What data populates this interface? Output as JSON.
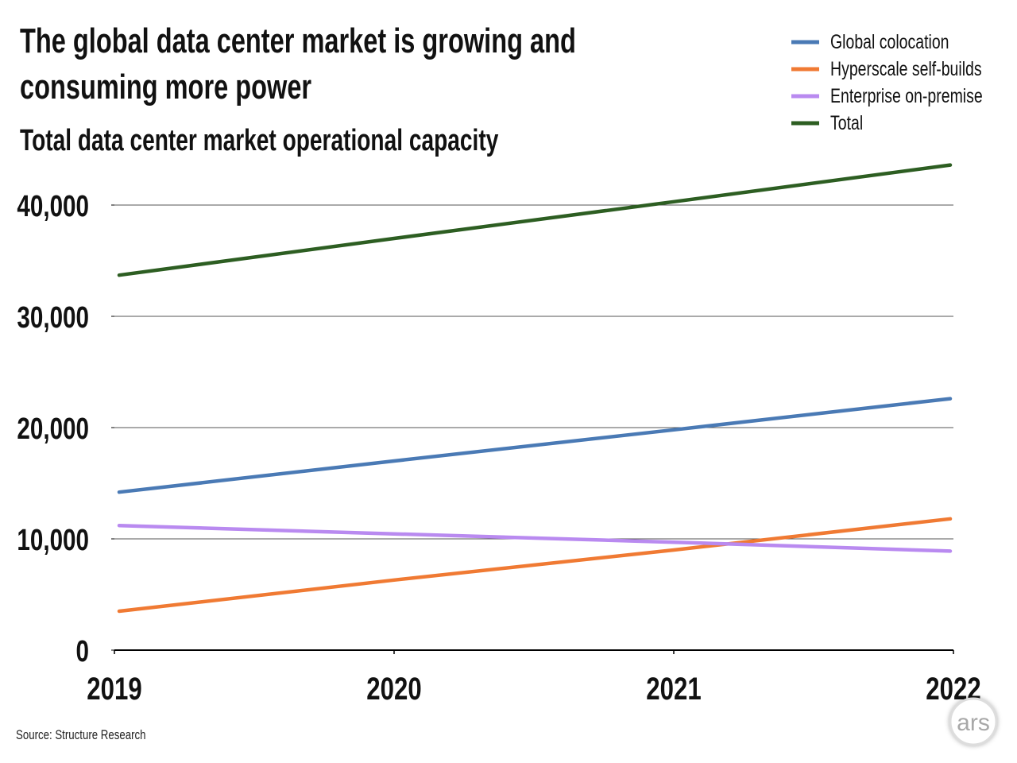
{
  "chart_data": {
    "type": "line",
    "title": "The global data center market is growing and consuming more power",
    "title_lines": [
      "The global data center market is growing and",
      "consuming more power"
    ],
    "subtitle": "Total data center market operational capacity",
    "xlabel": "",
    "ylabel": "",
    "x": [
      "2019",
      "2020",
      "2021",
      "2022"
    ],
    "yticks": [
      "0",
      "10,000",
      "20,000",
      "30,000",
      "40,000"
    ],
    "ylim": [
      0,
      40000
    ],
    "grid": true,
    "legend_position": "top-right",
    "series": [
      {
        "name": "Global colocation",
        "color": "#4a7ab5",
        "values": [
          14200,
          17000,
          19800,
          22600
        ]
      },
      {
        "name": "Hyperscale self-builds",
        "color": "#f07a33",
        "values": [
          3500,
          6300,
          9000,
          11800
        ]
      },
      {
        "name": "Enterprise on-premise",
        "color": "#b98af0",
        "values": [
          11200,
          10450,
          9700,
          8900
        ]
      },
      {
        "name": "Total",
        "color": "#2d5e22",
        "values": [
          33700,
          37000,
          40300,
          43600
        ]
      }
    ],
    "source": "Source: Structure Research"
  },
  "logo": {
    "text": "ars"
  }
}
